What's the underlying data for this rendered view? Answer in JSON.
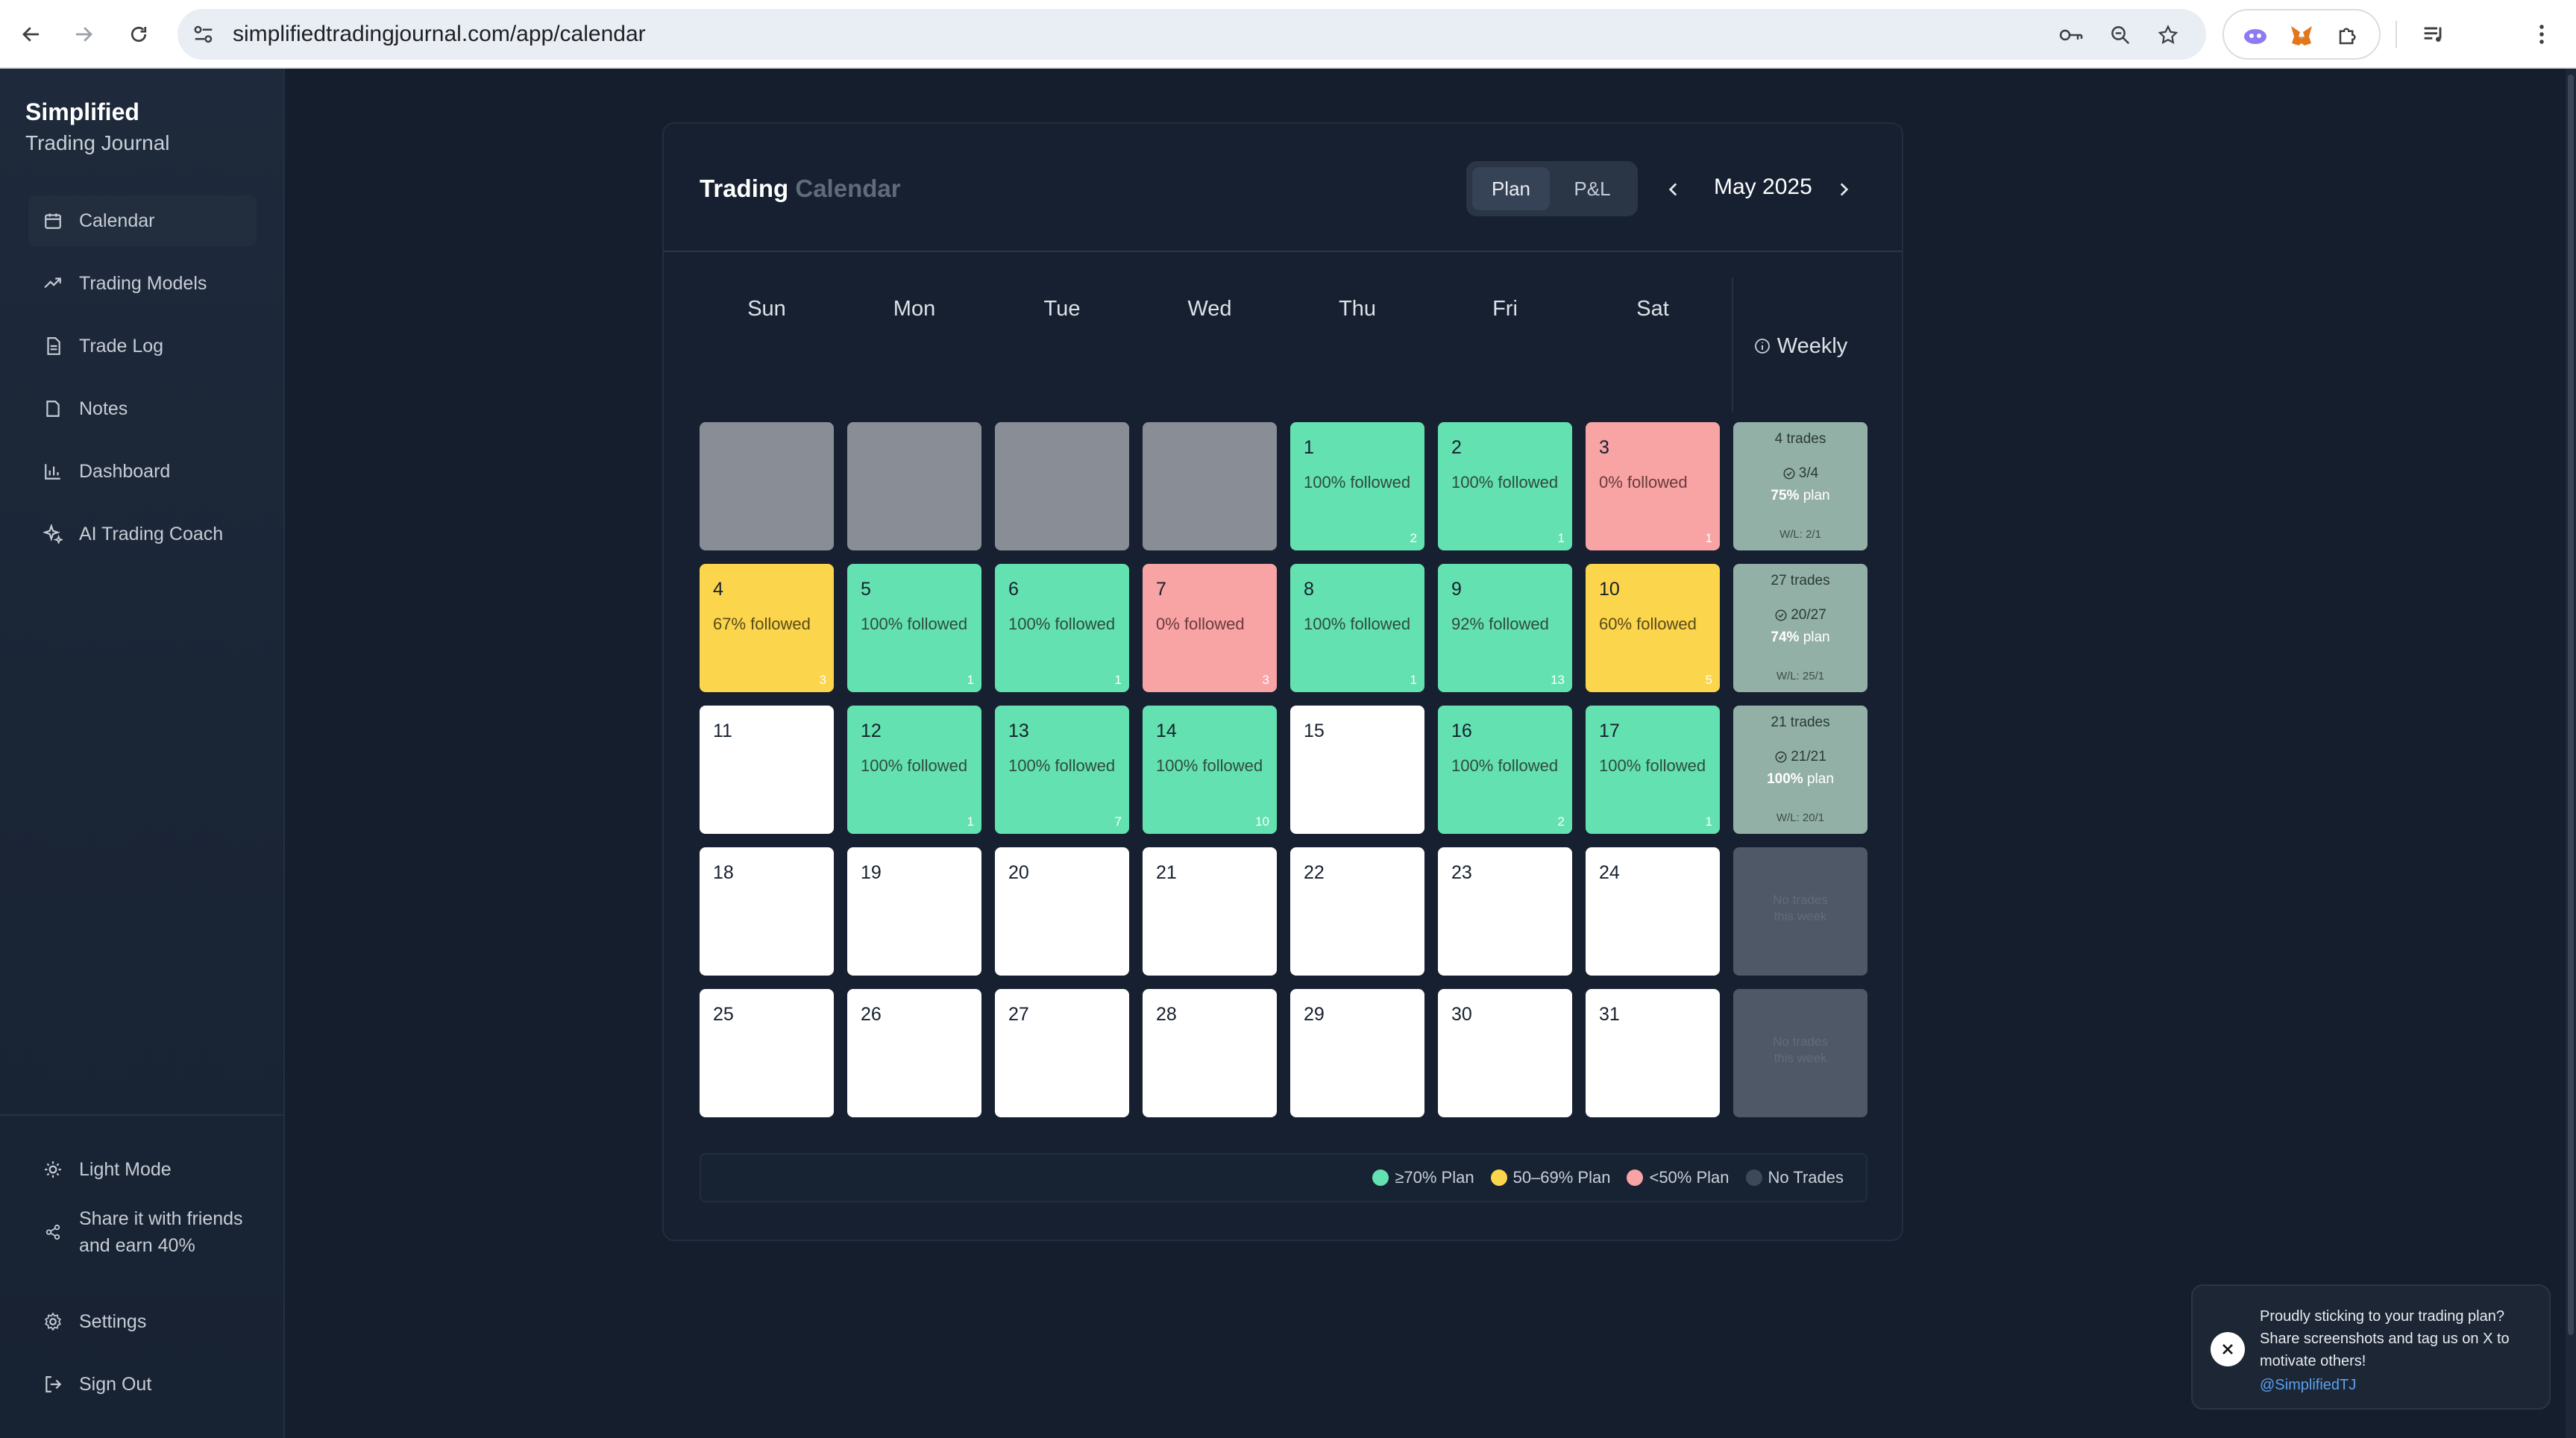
{
  "browser": {
    "url": "simplifiedtradingjournal.com/app/calendar"
  },
  "sidebar": {
    "brand_title": "Simplified",
    "brand_subtitle": "Trading Journal",
    "nav": [
      {
        "label": "Calendar",
        "icon": "calendar-icon",
        "active": true
      },
      {
        "label": "Trading Models",
        "icon": "trend-up-icon"
      },
      {
        "label": "Trade Log",
        "icon": "document-icon"
      },
      {
        "label": "Notes",
        "icon": "note-icon"
      },
      {
        "label": "Dashboard",
        "icon": "bar-chart-icon"
      },
      {
        "label": "AI Trading Coach",
        "icon": "sparkle-icon"
      }
    ],
    "bottom": {
      "light_mode": "Light Mode",
      "share_line1": "Share it with friends",
      "share_line2": "and earn 40%",
      "settings": "Settings",
      "sign_out": "Sign Out"
    }
  },
  "calendar": {
    "title_main": "Trading",
    "title_muted": "Calendar",
    "toggle": {
      "plan": "Plan",
      "pnl": "P&L",
      "selected": "Plan"
    },
    "month": "May 2025",
    "weekdays": [
      "Sun",
      "Mon",
      "Tue",
      "Wed",
      "Thu",
      "Fri",
      "Sat"
    ],
    "weekly_label": "Weekly",
    "weeks": [
      {
        "days": [
          {
            "status": "empty"
          },
          {
            "status": "empty"
          },
          {
            "status": "empty"
          },
          {
            "status": "empty"
          },
          {
            "day": "1",
            "status": "green",
            "followed": "100% followed",
            "trades": "2"
          },
          {
            "day": "2",
            "status": "green",
            "followed": "100% followed",
            "trades": "1"
          },
          {
            "day": "3",
            "status": "red",
            "followed": "0% followed",
            "trades": "1"
          }
        ],
        "weekly": {
          "trades": "4 trades",
          "plan_count": "3/4",
          "plan_pct": "75%",
          "plan_word": "plan",
          "wl": "W/L: 2/1"
        }
      },
      {
        "days": [
          {
            "day": "4",
            "status": "yellow",
            "followed": "67% followed",
            "trades": "3"
          },
          {
            "day": "5",
            "status": "green",
            "followed": "100% followed",
            "trades": "1"
          },
          {
            "day": "6",
            "status": "green",
            "followed": "100% followed",
            "trades": "1"
          },
          {
            "day": "7",
            "status": "red",
            "followed": "0% followed",
            "trades": "3"
          },
          {
            "day": "8",
            "status": "green",
            "followed": "100% followed",
            "trades": "1"
          },
          {
            "day": "9",
            "status": "green",
            "followed": "92% followed",
            "trades": "13"
          },
          {
            "day": "10",
            "status": "yellow",
            "followed": "60% followed",
            "trades": "5"
          }
        ],
        "weekly": {
          "trades": "27 trades",
          "plan_count": "20/27",
          "plan_pct": "74%",
          "plan_word": "plan",
          "wl": "W/L: 25/1"
        }
      },
      {
        "days": [
          {
            "day": "11",
            "status": "white"
          },
          {
            "day": "12",
            "status": "green",
            "followed": "100% followed",
            "trades": "1"
          },
          {
            "day": "13",
            "status": "green",
            "followed": "100% followed",
            "trades": "7"
          },
          {
            "day": "14",
            "status": "green",
            "followed": "100% followed",
            "trades": "10"
          },
          {
            "day": "15",
            "status": "white"
          },
          {
            "day": "16",
            "status": "green",
            "followed": "100% followed",
            "trades": "2"
          },
          {
            "day": "17",
            "status": "green",
            "followed": "100% followed",
            "trades": "1"
          }
        ],
        "weekly": {
          "trades": "21 trades",
          "plan_count": "21/21",
          "plan_pct": "100%",
          "plan_word": "plan",
          "wl": "W/L: 20/1"
        }
      },
      {
        "days": [
          {
            "day": "18",
            "status": "white"
          },
          {
            "day": "19",
            "status": "white"
          },
          {
            "day": "20",
            "status": "white"
          },
          {
            "day": "21",
            "status": "white"
          },
          {
            "day": "22",
            "status": "white"
          },
          {
            "day": "23",
            "status": "white"
          },
          {
            "day": "24",
            "status": "white"
          }
        ],
        "weekly": {
          "none_line1": "No trades",
          "none_line2": "this week"
        }
      },
      {
        "days": [
          {
            "day": "25",
            "status": "white"
          },
          {
            "day": "26",
            "status": "white"
          },
          {
            "day": "27",
            "status": "white"
          },
          {
            "day": "28",
            "status": "white"
          },
          {
            "day": "29",
            "status": "white"
          },
          {
            "day": "30",
            "status": "white"
          },
          {
            "day": "31",
            "status": "white"
          }
        ],
        "weekly": {
          "none_line1": "No trades",
          "none_line2": "this week"
        }
      }
    ],
    "legend": [
      {
        "label": "≥70% Plan",
        "color": "#63e1b1"
      },
      {
        "label": "50–69% Plan",
        "color": "#fbd54c"
      },
      {
        "label": "<50% Plan",
        "color": "#f8a3a4"
      },
      {
        "label": "No Trades",
        "color": "#3d4858"
      }
    ]
  },
  "toast": {
    "message": "Proudly sticking to your trading plan? Share screenshots and tag us on X to motivate others!",
    "handle": "@SimplifiedTJ"
  },
  "colors": {
    "green": "#63e1b1",
    "yellow": "#fbd54c",
    "red": "#f8a3a4",
    "empty": "#898e96",
    "weekly": "#93b0a7",
    "link": "#5aa2f0"
  }
}
